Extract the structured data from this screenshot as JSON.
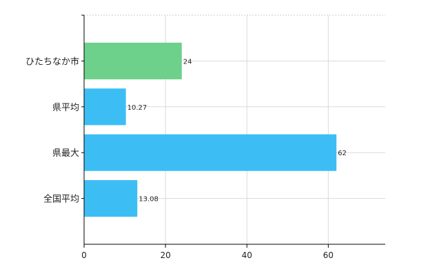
{
  "chart_data": {
    "type": "bar",
    "orientation": "horizontal",
    "categories": [
      "ひたちなか市",
      "県平均",
      "県最大",
      "全国平均"
    ],
    "values": [
      24,
      10.27,
      62,
      13.08
    ],
    "data_labels": [
      "24",
      "10.27",
      "62",
      "13.08"
    ],
    "bar_colors": [
      "#6dd08b",
      "#3cbef5",
      "#3cbef5",
      "#3cbef5"
    ],
    "x_ticks": [
      0,
      20,
      40,
      60
    ],
    "xlim": [
      0,
      74
    ],
    "grid": true,
    "legend": "none"
  }
}
